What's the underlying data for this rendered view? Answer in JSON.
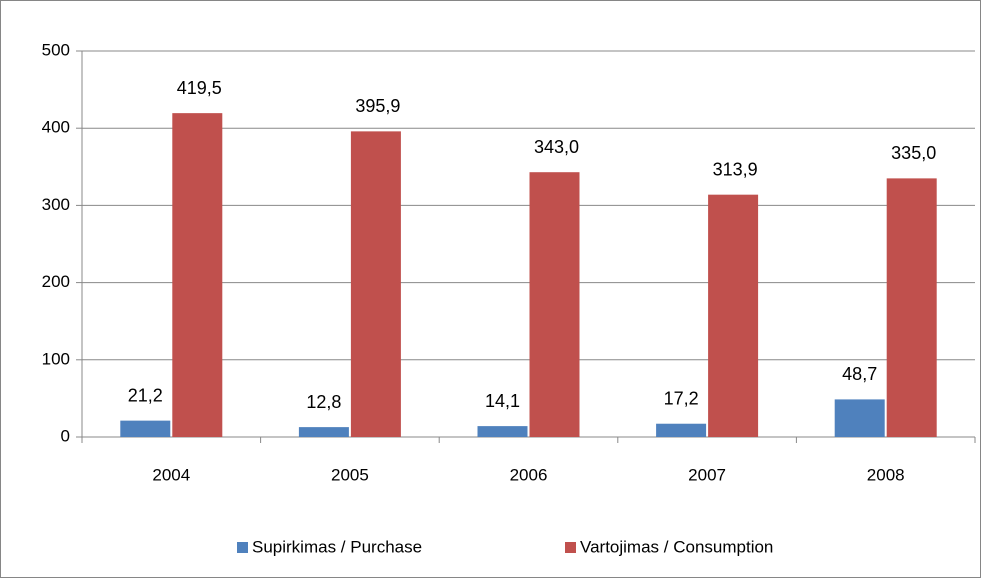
{
  "chart_data": {
    "type": "bar",
    "categories": [
      "2004",
      "2005",
      "2006",
      "2007",
      "2008"
    ],
    "series": [
      {
        "name": "Supirkimas / Purchase",
        "color": "#4f81bd",
        "values": [
          21.2,
          12.8,
          14.1,
          17.2,
          48.7
        ],
        "value_labels": [
          "21,2",
          "12,8",
          "14,1",
          "17,2",
          "48,7"
        ]
      },
      {
        "name": "Vartojimas / Consumption",
        "color": "#c0504d",
        "values": [
          419.5,
          395.9,
          343.0,
          313.9,
          335.0
        ],
        "value_labels": [
          "419,5",
          "395,9",
          "343,0",
          "313,9",
          "335,0"
        ]
      }
    ],
    "ylim": [
      0,
      500
    ],
    "yticks": [
      0,
      100,
      200,
      300,
      400,
      500
    ],
    "grid": true,
    "legend": "bottom"
  }
}
